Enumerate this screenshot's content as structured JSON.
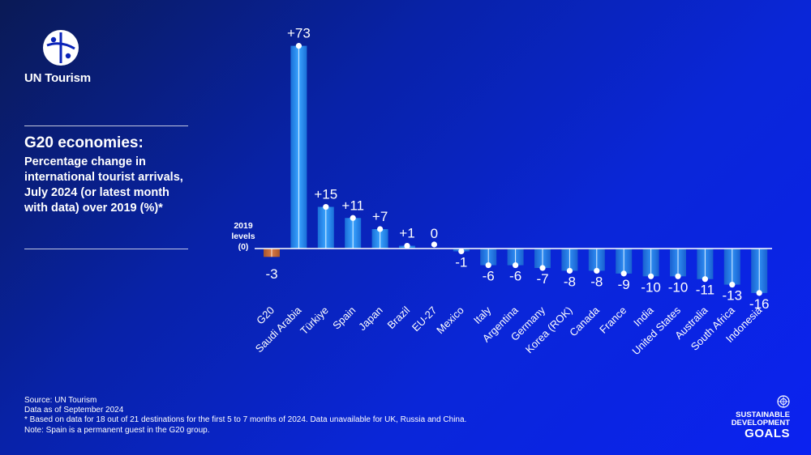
{
  "brand": {
    "name": "UN Tourism",
    "logo_icon": "un-tourism-logo-icon"
  },
  "title": {
    "main": "G20 economies:",
    "sub": "Percentage change in international tourist arrivals, July 2024 (or latest month with data) over 2019 (%)*"
  },
  "footnote": {
    "lines": [
      "Source: UN Tourism",
      "Data as of September 2024",
      "* Based on data for 18 out of 21 destinations for the first 5 to 7 months of 2024. Data unavailable for UK, Russia and China.",
      "Note: Spain is a permanent guest in the G20 group."
    ]
  },
  "sdg": {
    "line1": "SUSTAINABLE",
    "line2": "DEVELOPMENT",
    "line3": "GOALS",
    "emblem_icon": "un-emblem-icon"
  },
  "colors": {
    "bar": "#1e7fe6",
    "bar_highlight": "#3aa4ff",
    "g20_bar": "#c86a3a",
    "baseline": "#ffffff"
  },
  "chart_data": {
    "type": "bar",
    "baseline_label": [
      "2019",
      "levels",
      "(0)"
    ],
    "categories": [
      "G20",
      "Saudi Arabia",
      "Türkiye",
      "Spain",
      "Japan",
      "Brazil",
      "EU-27",
      "Mexico",
      "Italy",
      "Argentina",
      "Germany",
      "Korea (ROK)",
      "Canada",
      "France",
      "India",
      "United States",
      "Australia",
      "South Africa",
      "Indonesia"
    ],
    "values": [
      -3,
      73,
      15,
      11,
      7,
      1,
      0,
      -1,
      -6,
      -6,
      -7,
      -8,
      -8,
      -9,
      -10,
      -10,
      -11,
      -13,
      -16
    ],
    "value_labels": [
      "-3",
      "+73",
      "+15",
      "+11",
      "+7",
      "+1",
      "0",
      "-1",
      "-6",
      "-6",
      "-7",
      "-8",
      "-8",
      "-9",
      "-10",
      "-10",
      "-11",
      "-13",
      "-16"
    ],
    "ylim": [
      -16,
      73
    ],
    "grid": false,
    "legend": "none"
  }
}
